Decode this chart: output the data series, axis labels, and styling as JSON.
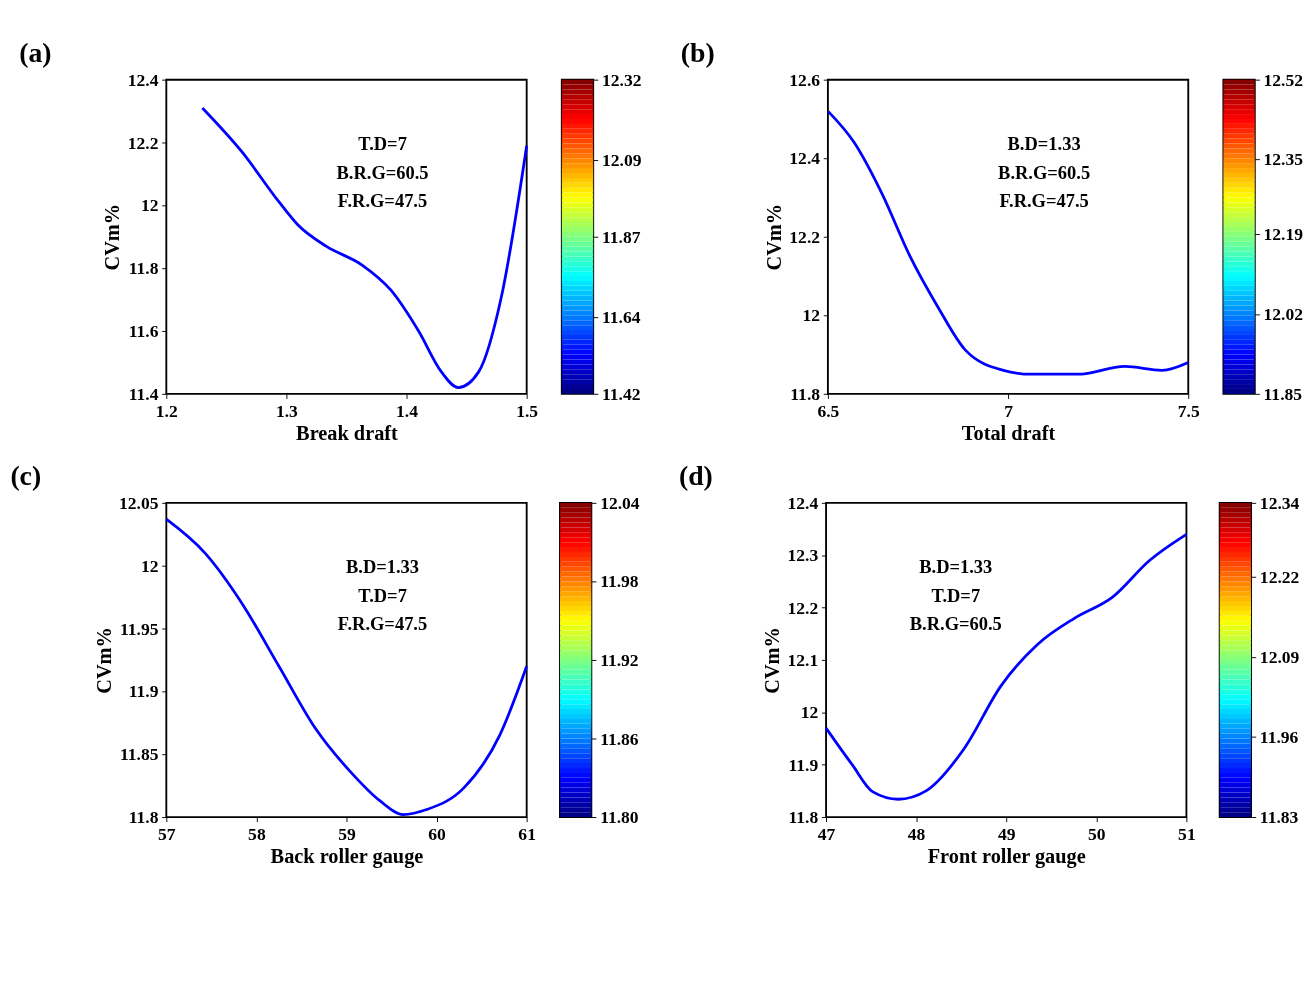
{
  "chart_data": [
    {
      "type": "line",
      "title": "(a)",
      "xlabel": "Break draft",
      "ylabel": "CVm%",
      "annotations": [
        "T.D=7",
        "B.R.G=60.5",
        "F.R.G=47.5"
      ],
      "xlim": [
        1.2,
        1.5
      ],
      "xticks": [
        1.2,
        1.3,
        1.4,
        1.5
      ],
      "ylim": [
        11.4,
        12.4
      ],
      "yticks": [
        11.4,
        11.6,
        11.8,
        12,
        12.2,
        12.4
      ],
      "clim": [
        11.42,
        12.32
      ],
      "cticks": [
        11.42,
        11.64,
        11.87,
        12.09,
        12.32
      ],
      "grid": false,
      "marker": "none",
      "line_style": "solid",
      "series": [
        {
          "color": "#0000ff",
          "x": [
            1.23,
            1.263,
            1.294,
            1.309,
            1.333,
            1.363,
            1.387,
            1.41,
            1.429,
            1.443,
            1.46,
            1.479,
            1.5
          ],
          "values": [
            12.31,
            12.17,
            12.01,
            11.94,
            11.87,
            11.81,
            11.73,
            11.6,
            11.47,
            11.42,
            11.47,
            11.71,
            12.19
          ]
        }
      ]
    },
    {
      "type": "line",
      "title": "(b)",
      "xlabel": "Total draft",
      "ylabel": "CVm%",
      "annotations": [
        "B.D=1.33",
        "B.R.G=60.5",
        "F.R.G=47.5"
      ],
      "xlim": [
        6.5,
        7.5
      ],
      "xticks": [
        6.5,
        7,
        7.5
      ],
      "ylim": [
        11.8,
        12.6
      ],
      "yticks": [
        11.8,
        12,
        12.2,
        12.4,
        12.6
      ],
      "clim": [
        11.85,
        12.52
      ],
      "cticks": [
        11.85,
        12.02,
        12.19,
        12.35,
        12.52
      ],
      "grid": false,
      "marker": "none",
      "line_style": "solid",
      "series": [
        {
          "color": "#0000ff",
          "x": [
            6.5,
            6.573,
            6.65,
            6.728,
            6.806,
            6.883,
            6.987,
            7.065,
            7.194,
            7.324,
            7.427,
            7.5
          ],
          "values": [
            12.52,
            12.44,
            12.31,
            12.15,
            12.02,
            11.91,
            11.86,
            11.85,
            11.85,
            11.87,
            11.86,
            11.88
          ]
        }
      ]
    },
    {
      "type": "line",
      "title": "(c)",
      "xlabel": "Back roller gauge",
      "ylabel": "CVm%",
      "annotations": [
        "B.D=1.33",
        "T.D=7",
        "F.R.G=47.5"
      ],
      "xlim": [
        57,
        61
      ],
      "xticks": [
        57,
        58,
        59,
        60,
        61
      ],
      "ylim": [
        11.8,
        12.05
      ],
      "yticks": [
        11.8,
        11.85,
        11.9,
        11.95,
        12,
        12.05
      ],
      "clim": [
        11.8,
        12.04
      ],
      "cticks": [
        {
          "value": 11.8,
          "label": "11.80"
        },
        11.86,
        11.92,
        11.98,
        12.04
      ],
      "grid": false,
      "marker": "none",
      "line_style": "solid",
      "series": [
        {
          "color": "#0000ff",
          "x": [
            57,
            57.43,
            57.84,
            58.25,
            58.66,
            59.07,
            59.37,
            59.63,
            59.89,
            60.3,
            60.7,
            61
          ],
          "values": [
            12.037,
            12.01,
            11.97,
            11.92,
            11.87,
            11.834,
            11.813,
            11.802,
            11.806,
            11.823,
            11.865,
            11.92
          ]
        }
      ]
    },
    {
      "type": "line",
      "title": "(d)",
      "xlabel": "Front roller gauge",
      "ylabel": "CVm%",
      "annotations": [
        "B.D=1.33",
        "T.D=7",
        "B.R.G=60.5"
      ],
      "xlim": [
        47,
        51
      ],
      "xticks": [
        47,
        48,
        49,
        50,
        51
      ],
      "ylim": [
        11.8,
        12.4
      ],
      "yticks": [
        11.8,
        11.9,
        12,
        12.1,
        12.2,
        12.3,
        12.4
      ],
      "clim": [
        11.83,
        12.34
      ],
      "cticks": [
        11.83,
        11.96,
        12.09,
        12.22,
        12.34
      ],
      "grid": false,
      "marker": "none",
      "line_style": "solid",
      "series": [
        {
          "color": "#0000ff",
          "x": [
            47,
            47.29,
            47.52,
            47.8,
            48.11,
            48.53,
            48.94,
            49.35,
            49.76,
            50.18,
            50.59,
            51
          ],
          "values": [
            11.97,
            11.9,
            11.848,
            11.834,
            11.85,
            11.93,
            12.05,
            12.13,
            12.18,
            12.22,
            12.29,
            12.34
          ]
        }
      ]
    }
  ]
}
